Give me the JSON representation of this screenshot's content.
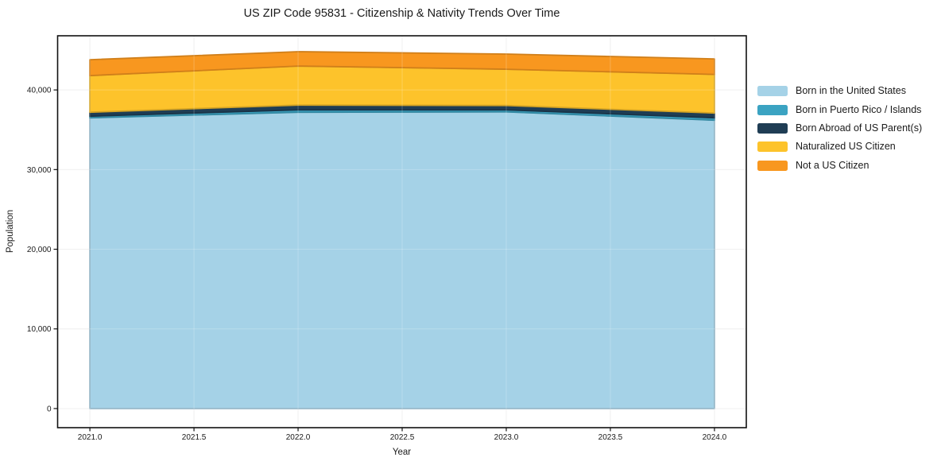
{
  "title": "US ZIP Code 95831 - Citizenship & Nativity Trends Over Time",
  "chart_data": {
    "type": "area",
    "stacked": true,
    "title": "US ZIP Code 95831 - Citizenship & Nativity Trends Over Time",
    "xlabel": "Year",
    "ylabel": "Population",
    "x": [
      2021,
      2022,
      2023,
      2024
    ],
    "series": [
      {
        "name": "Born in the United States",
        "color": "#a5d2e7",
        "values": [
          36500,
          37200,
          37250,
          36200
        ]
      },
      {
        "name": "Born in Puerto Rico / Islands",
        "color": "#3ba3c2",
        "values": [
          200,
          300,
          250,
          300
        ]
      },
      {
        "name": "Born Abroad of US Parent(s)",
        "color": "#1f3d54",
        "values": [
          500,
          600,
          550,
          600
        ]
      },
      {
        "name": "Naturalized US Citizen",
        "color": "#fdc32b",
        "values": [
          4600,
          4900,
          4550,
          4850
        ]
      },
      {
        "name": "Not a US Citizen",
        "color": "#f8971f",
        "values": [
          2000,
          1800,
          1900,
          1950
        ]
      }
    ],
    "xticks": {
      "values": [
        2021.0,
        2021.5,
        2022.0,
        2022.5,
        2023.0,
        2023.5,
        2024.0
      ],
      "labels": [
        "2021.0",
        "2021.5",
        "2022.0",
        "2022.5",
        "2023.0",
        "2023.5",
        "2024.0"
      ]
    },
    "yticks": {
      "values": [
        0,
        10000,
        20000,
        30000,
        40000
      ],
      "labels": [
        "0",
        "10,000",
        "20,000",
        "30,000",
        "40,000"
      ]
    },
    "xlim": [
      2020.845,
      2024.153
    ],
    "ylim": [
      -2400,
      46800
    ],
    "grid": true,
    "legend_position": "right",
    "colors": {
      "grid": "#ececec",
      "spine": "#111111",
      "text": "#1a1a1a",
      "plot_background": "#ffffff"
    }
  }
}
